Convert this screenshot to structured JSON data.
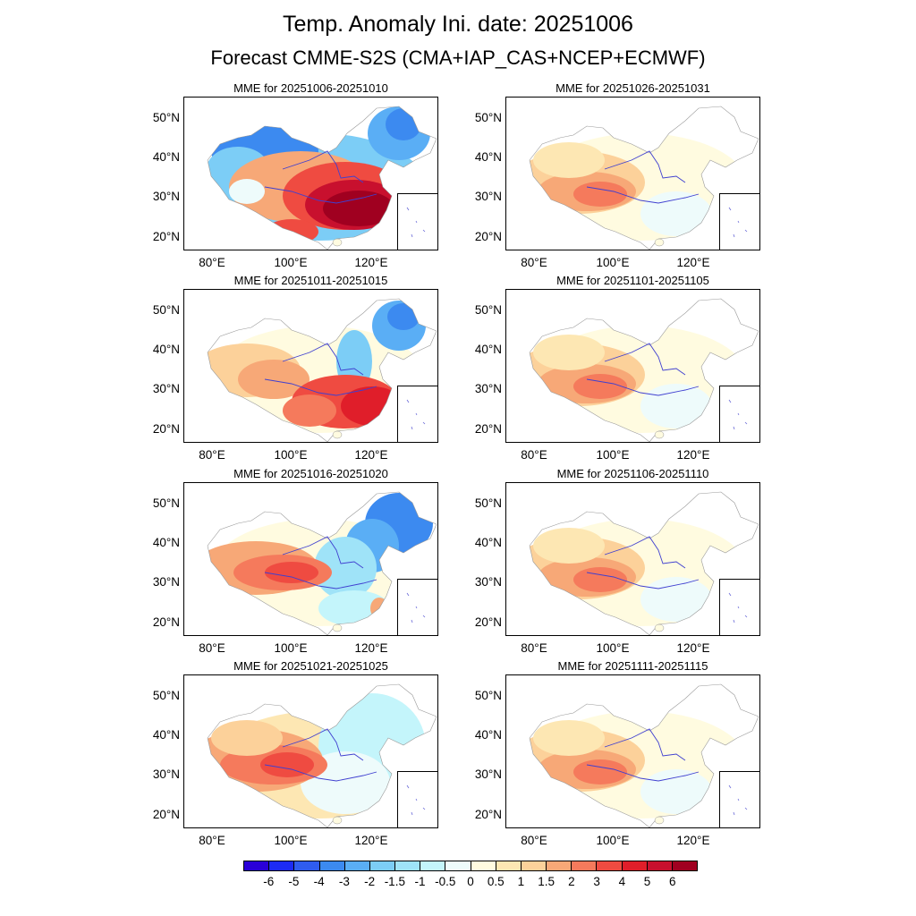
{
  "title": "Temp. Anomaly Ini. date: 20251006",
  "subtitle": "Forecast CMME-S2S (CMA+IAP_CAS+NCEP+ECMWF)",
  "panels": [
    {
      "label": "MME for 20251006-20251010",
      "pattern": "cold_north_hot_east"
    },
    {
      "label": "MME for 20251011-20251015",
      "pattern": "warm_west_hot_south"
    },
    {
      "label": "MME for 20251016-20251020",
      "pattern": "warm_tibet_cold_ne"
    },
    {
      "label": "MME for 20251021-20251025",
      "pattern": "warm_tibet_cool_east"
    },
    {
      "label": "MME for 20251026-20251031",
      "pattern": "warm_tibet_mild"
    },
    {
      "label": "MME for 20251101-20251105",
      "pattern": "warm_tibet_mild"
    },
    {
      "label": "MME for 20251106-20251110",
      "pattern": "warm_tibet_mild"
    },
    {
      "label": "MME for 20251111-20251115",
      "pattern": "warm_tibet_mild"
    }
  ],
  "lat_ticks": [
    "50°N",
    "40°N",
    "30°N",
    "20°N"
  ],
  "lon_ticks": [
    "80°E",
    "100°E",
    "120°E"
  ],
  "colorbar": {
    "labels": [
      "-6",
      "-5",
      "-4",
      "-3",
      "-2",
      "-1.5",
      "-1",
      "-0.5",
      "0",
      "0.5",
      "1",
      "1.5",
      "2",
      "3",
      "4",
      "5",
      "6"
    ],
    "colors": [
      "#2a00d8",
      "#1c2bf5",
      "#2f5cf0",
      "#3c8af0",
      "#5aaef5",
      "#7ccdf6",
      "#9fe3f8",
      "#c4f5fb",
      "#eefbfb",
      "#fffbe0",
      "#fde7b3",
      "#fcd19a",
      "#f7a877",
      "#f57a5c",
      "#ef4b41",
      "#e01e2a",
      "#c8102e",
      "#a00020"
    ]
  }
}
